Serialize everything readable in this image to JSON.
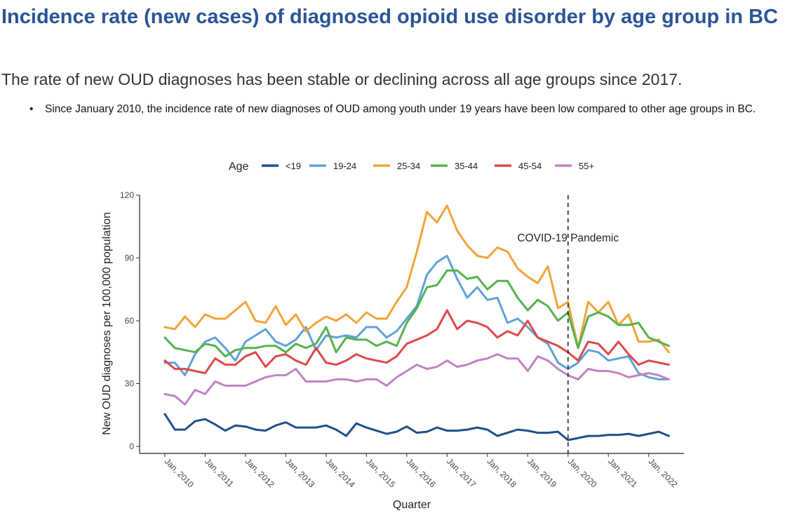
{
  "header": {
    "title": "Incidence rate (new cases) of diagnosed opioid use disorder by age group in BC",
    "subtitle": "The rate of new OUD diagnoses has been stable or declining across all age groups since 2017.",
    "bullets": [
      "Since January 2010, the incidence rate of new diagnoses of OUD among youth under 19 years have been low compared to other age groups in BC."
    ],
    "bullet_glyph": "•"
  },
  "chart_data": {
    "type": "line",
    "title": "",
    "xlabel": "Quarter",
    "ylabel": "New OUD diagnoses per 100,000 population",
    "ylim": [
      0,
      120
    ],
    "yticks": [
      0,
      30,
      60,
      90,
      120
    ],
    "x_tick_labels": [
      "Jan, 2010",
      "Jan, 2011",
      "Jan, 2012",
      "Jan, 2013",
      "Jan, 2014",
      "Jan, 2015",
      "Jan, 2016",
      "Jan, 2017",
      "Jan, 2018",
      "Jan, 2019",
      "Jan, 2020",
      "Jan, 2021",
      "Jan, 2022"
    ],
    "x_tick_positions": [
      0,
      4,
      8,
      12,
      16,
      20,
      24,
      28,
      32,
      36,
      40,
      44,
      48
    ],
    "xlim": [
      -2.5,
      51.5
    ],
    "legend": {
      "title": "Age",
      "position": "top"
    },
    "grid": false,
    "annotation": {
      "text": "COVID-19 Pandemic",
      "x": 40
    },
    "series": [
      {
        "name": "<19",
        "color": "#1f4f8b",
        "values": [
          15.5,
          8,
          8,
          12,
          13,
          10.5,
          7.5,
          10,
          9.5,
          8,
          7.5,
          10,
          11.5,
          9,
          9,
          9,
          10,
          8,
          5,
          11,
          9,
          7.5,
          6,
          7,
          9.5,
          6.5,
          7,
          9,
          7.5,
          7.5,
          8,
          9,
          8,
          5,
          6.5,
          8,
          7.5,
          6.5,
          6.5,
          7,
          3,
          4,
          5,
          5,
          5.5,
          5.5,
          6,
          5,
          6,
          7,
          5
        ]
      },
      {
        "name": "19-24",
        "color": "#5fa2d9",
        "values": [
          40,
          40,
          34,
          44,
          50,
          52,
          47,
          41,
          50,
          53,
          56,
          50,
          48,
          51,
          57,
          46,
          53,
          52,
          53,
          52,
          57,
          57,
          52,
          55,
          61,
          67,
          82,
          88,
          91,
          80,
          71,
          76,
          70,
          71,
          59,
          61,
          57,
          52,
          49,
          40,
          37,
          40,
          46,
          45,
          41,
          42,
          43,
          35,
          33,
          32,
          32
        ]
      },
      {
        "name": "25-34",
        "color": "#f4a339",
        "values": [
          57,
          56,
          62,
          57,
          63,
          61,
          61,
          65,
          69,
          60,
          59,
          67,
          58,
          63,
          55,
          59,
          62,
          60,
          63,
          59,
          64,
          61,
          61,
          69,
          76,
          93,
          112,
          107,
          115,
          103,
          96,
          91,
          90,
          95,
          93,
          85,
          81,
          78,
          86,
          66,
          69,
          47,
          69,
          64,
          69,
          58,
          63,
          50,
          50,
          51,
          45
        ]
      },
      {
        "name": "35-44",
        "color": "#55b34f",
        "values": [
          52,
          47,
          46,
          45,
          49,
          48,
          43,
          46,
          47,
          47,
          48,
          48,
          45,
          49,
          47,
          49,
          57,
          45,
          52,
          51,
          51,
          48,
          50,
          48,
          59,
          66,
          76,
          77,
          84,
          84,
          80,
          81,
          75,
          79,
          79,
          71,
          65,
          70,
          67,
          60,
          64,
          47,
          62,
          64,
          62,
          58,
          58,
          59,
          52,
          50,
          48
        ]
      },
      {
        "name": "45-54",
        "color": "#e0484a",
        "values": [
          41,
          37,
          37,
          36,
          35,
          42,
          39,
          39,
          43,
          45,
          38,
          43,
          44,
          41,
          39,
          47,
          40,
          39,
          41,
          44,
          42,
          41,
          40,
          43,
          49,
          51,
          53,
          56,
          65,
          56,
          60,
          59,
          57,
          52,
          55,
          53,
          60,
          52,
          50,
          48,
          45,
          41,
          50,
          49,
          44,
          50,
          44,
          39,
          41,
          40,
          39
        ]
      },
      {
        "name": "55+",
        "color": "#c083c4",
        "values": [
          25,
          24,
          20,
          27,
          25,
          31,
          29,
          29,
          29,
          31,
          33,
          34,
          34,
          37,
          31,
          31,
          31,
          32,
          32,
          31,
          32,
          32,
          29,
          33,
          36,
          39,
          37,
          38,
          41,
          38,
          39,
          41,
          42,
          44,
          42,
          42,
          36,
          43,
          41,
          37,
          34,
          32,
          37,
          36,
          36,
          35,
          33,
          34,
          35,
          34,
          32
        ]
      }
    ]
  }
}
